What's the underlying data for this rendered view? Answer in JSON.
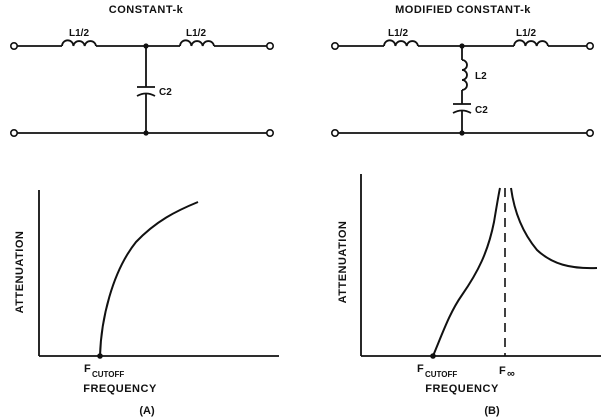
{
  "panel_a": {
    "title": "CONSTANT-k",
    "inductor_left": "L1/2",
    "inductor_right": "L1/2",
    "capacitor": "C2",
    "y_axis_label": "ATTENUATION",
    "x_axis_label": "FREQUENCY",
    "cutoff_main": "F",
    "cutoff_sub": "CUTOFF",
    "caption": "(A)"
  },
  "panel_b": {
    "title": "MODIFIED CONSTANT-k",
    "inductor_left": "L1/2",
    "inductor_right": "L1/2",
    "inductor_shunt": "L2",
    "capacitor": "C2",
    "y_axis_label": "ATTENUATION",
    "x_axis_label": "FREQUENCY",
    "cutoff_main": "F",
    "cutoff_sub": "CUTOFF",
    "infinity_main": "F",
    "infinity_sub": "∞",
    "caption": "(B)"
  }
}
